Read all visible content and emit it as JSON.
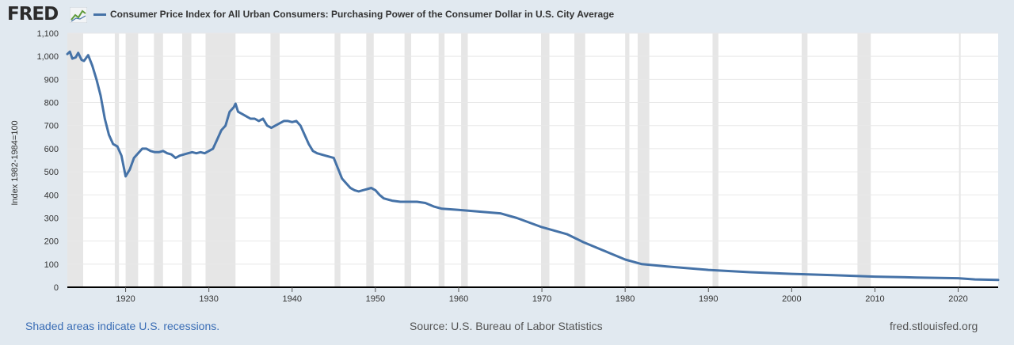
{
  "header": {
    "logo_text": "FRED",
    "logo_icon": "line-graph-icon",
    "series_title": "Consumer Price Index for All Urban Consumers: Purchasing Power of the Consumer Dollar in U.S. City Average"
  },
  "colors": {
    "line": "#4572a7",
    "recession": "#e6e6e6",
    "plot_bg": "#ffffff",
    "page_bg": "#e1e9f0"
  },
  "footer": {
    "recession_note": "Shaded areas indicate U.S. recessions.",
    "source": "Source: U.S. Bureau of Labor Statistics",
    "site": "fred.stlouisfed.org"
  },
  "chart_data": {
    "type": "line",
    "title": "Consumer Price Index for All Urban Consumers: Purchasing Power of the Consumer Dollar in U.S. City Average",
    "ylabel": "Index 1982-1984=100",
    "xlabel": "",
    "xlim": [
      1913,
      2024.8
    ],
    "ylim": [
      0,
      1100
    ],
    "yticks": [
      0,
      100,
      200,
      300,
      400,
      500,
      600,
      700,
      800,
      900,
      1000,
      1100
    ],
    "ytick_labels": [
      "0",
      "100",
      "200",
      "300",
      "400",
      "500",
      "600",
      "700",
      "800",
      "900",
      "1,000",
      "1,100"
    ],
    "xticks": [
      1920,
      1930,
      1940,
      1950,
      1960,
      1970,
      1980,
      1990,
      2000,
      2010,
      2020
    ],
    "xtick_labels": [
      "1920",
      "1930",
      "1940",
      "1950",
      "1960",
      "1970",
      "1980",
      "1990",
      "2000",
      "2010",
      "2020"
    ],
    "grid": true,
    "recessions": [
      [
        1913.0,
        1914.9
      ],
      [
        1918.7,
        1919.2
      ],
      [
        1920.0,
        1921.5
      ],
      [
        1923.4,
        1924.5
      ],
      [
        1926.8,
        1927.9
      ],
      [
        1929.6,
        1933.2
      ],
      [
        1937.4,
        1938.5
      ],
      [
        1945.1,
        1945.8
      ],
      [
        1948.9,
        1949.8
      ],
      [
        1953.5,
        1954.3
      ],
      [
        1957.6,
        1958.3
      ],
      [
        1960.3,
        1961.1
      ],
      [
        1969.9,
        1970.9
      ],
      [
        1973.9,
        1975.2
      ],
      [
        1980.0,
        1980.5
      ],
      [
        1981.5,
        1982.9
      ],
      [
        1990.5,
        1991.2
      ],
      [
        2001.2,
        2001.9
      ],
      [
        2007.9,
        2009.5
      ],
      [
        2020.1,
        2020.3
      ]
    ],
    "series": [
      {
        "x": [
          1913.0,
          1913.3,
          1913.6,
          1914.0,
          1914.3,
          1914.7,
          1915.0,
          1915.5,
          1916.0,
          1916.5,
          1917.0,
          1917.5,
          1918.0,
          1918.5,
          1919.0,
          1919.5,
          1920.0,
          1920.5,
          1921.0,
          1921.5,
          1922.0,
          1922.5,
          1923.0,
          1923.5,
          1924.0,
          1924.5,
          1925.0,
          1925.5,
          1926.0,
          1926.5,
          1927.0,
          1927.5,
          1928.0,
          1928.5,
          1929.0,
          1929.5,
          1930.0,
          1930.5,
          1931.0,
          1931.5,
          1932.0,
          1932.5,
          1933.0,
          1933.2,
          1933.5,
          1934.0,
          1934.5,
          1935.0,
          1935.5,
          1936.0,
          1936.5,
          1937.0,
          1937.5,
          1938.0,
          1938.5,
          1939.0,
          1939.5,
          1940.0,
          1940.5,
          1941.0,
          1941.5,
          1942.0,
          1942.5,
          1943.0,
          1944.0,
          1945.0,
          1946.0,
          1946.5,
          1947.0,
          1947.5,
          1948.0,
          1948.5,
          1949.0,
          1949.5,
          1950.0,
          1950.5,
          1951.0,
          1952.0,
          1953.0,
          1954.0,
          1955.0,
          1956.0,
          1957.0,
          1958.0,
          1960.0,
          1965.0,
          1967.0,
          1970.0,
          1973.0,
          1975.0,
          1978.0,
          1980.0,
          1982.0,
          1985.0,
          1990.0,
          1995.0,
          2000.0,
          2005.0,
          2010.0,
          2015.0,
          2020.0,
          2022.0,
          2024.8
        ],
        "values": [
          1010,
          1020,
          990,
          995,
          1015,
          985,
          980,
          1005,
          960,
          900,
          830,
          730,
          660,
          620,
          610,
          570,
          480,
          510,
          560,
          580,
          600,
          600,
          590,
          585,
          585,
          590,
          580,
          575,
          560,
          570,
          575,
          580,
          585,
          580,
          585,
          580,
          590,
          600,
          640,
          680,
          700,
          760,
          780,
          795,
          760,
          750,
          740,
          730,
          730,
          720,
          730,
          700,
          690,
          700,
          710,
          720,
          720,
          715,
          720,
          700,
          660,
          620,
          590,
          580,
          570,
          560,
          470,
          450,
          430,
          420,
          415,
          420,
          425,
          430,
          420,
          400,
          385,
          375,
          370,
          370,
          370,
          365,
          350,
          340,
          335,
          320,
          300,
          260,
          230,
          195,
          150,
          120,
          100,
          90,
          75,
          65,
          58,
          52,
          46,
          42,
          39,
          34,
          32
        ]
      }
    ]
  }
}
